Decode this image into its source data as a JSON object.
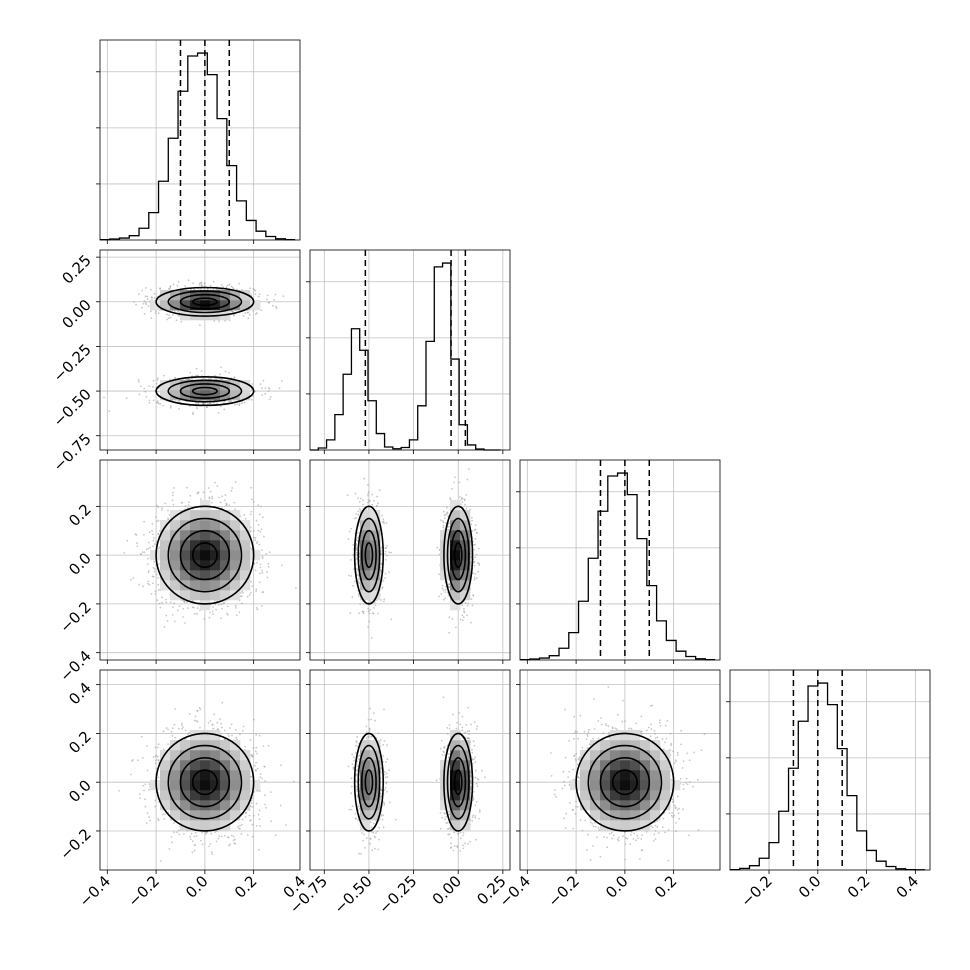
{
  "chart_data": {
    "type": "corner",
    "variables": 4,
    "quantile_lines": [
      -1,
      0,
      1
    ],
    "colors": {
      "line": "#000000",
      "grid": "#c0c0c0",
      "points": "#9a9a9a",
      "density_dark": "#000000",
      "density_light": "#ffffff"
    },
    "grid": true,
    "axes": [
      {
        "range": [
          -0.43,
          0.39
        ],
        "ticks": [
          "−0.4",
          "−0.2",
          "0.0",
          "0.2",
          "0.4"
        ],
        "tick_values": [
          -0.4,
          -0.2,
          0.0,
          0.2,
          0.4
        ]
      },
      {
        "range": [
          -0.83,
          0.29
        ],
        "ticks": [
          "−0.75",
          "−0.50",
          "−0.25",
          "0.00",
          "0.25"
        ],
        "tick_values": [
          -0.75,
          -0.5,
          -0.25,
          0.0,
          0.25
        ]
      },
      {
        "range": [
          -0.43,
          0.39
        ],
        "ticks": [
          "−0.4",
          "−0.2",
          "0.0",
          "0.2"
        ],
        "tick_values": [
          -0.4,
          -0.2,
          0.0,
          0.2
        ]
      },
      {
        "range": [
          -0.36,
          0.46
        ],
        "ticks": [
          "−0.2",
          "0.0",
          "0.2",
          "0.4"
        ],
        "tick_values": [
          -0.2,
          0.0,
          0.2,
          0.4
        ]
      }
    ],
    "bottom_ticks": [
      {
        "values": [
          -0.4,
          -0.2,
          0.0,
          0.2,
          0.4
        ],
        "labels": [
          "−0.4",
          "−0.2",
          "0.0",
          "0.2",
          "0.4"
        ]
      },
      {
        "values": [
          -0.75,
          -0.5,
          -0.25,
          0.0,
          0.25
        ],
        "labels": [
          "−0.75",
          "−0.50",
          "−0.25",
          "0.00",
          "0.25"
        ]
      },
      {
        "values": [
          -0.4,
          -0.2,
          0.0,
          0.2
        ],
        "labels": [
          "−0.4",
          "−0.2",
          "0.0",
          "0.2"
        ]
      },
      {
        "values": [
          -0.2,
          0.0,
          0.2,
          0.4
        ],
        "labels": [
          "−0.2",
          "0.0",
          "0.2",
          "0.4"
        ]
      }
    ],
    "left_ticks": [
      null,
      {
        "values": [
          -0.75,
          -0.5,
          -0.25,
          0.0,
          0.25
        ],
        "labels": [
          "−0.75",
          "−0.50",
          "−0.25",
          "0.00",
          "0.25"
        ]
      },
      {
        "values": [
          -0.4,
          -0.2,
          0.0,
          0.2
        ],
        "labels": [
          "−0.4",
          "−0.2",
          "0.0",
          "0.2"
        ]
      },
      {
        "values": [
          -0.2,
          0.0,
          0.2,
          0.4
        ],
        "labels": [
          "−0.2",
          "0.0",
          "0.2",
          "0.4"
        ]
      }
    ],
    "histograms": [
      {
        "quantiles": [
          -0.1,
          0.0,
          0.1
        ],
        "bin_edges": [
          -0.43,
          -0.39,
          -0.35,
          -0.31,
          -0.27,
          -0.23,
          -0.19,
          -0.15,
          -0.11,
          -0.07,
          -0.03,
          0.01,
          0.05,
          0.09,
          0.13,
          0.17,
          0.21,
          0.25,
          0.29,
          0.33,
          0.37
        ],
        "counts": [
          2,
          5,
          10,
          22,
          60,
          140,
          300,
          520,
          760,
          940,
          955,
          845,
          620,
          380,
          200,
          100,
          45,
          18,
          6,
          2
        ]
      },
      {
        "quantiles": [
          -0.52,
          -0.04,
          0.04
        ],
        "bin_edges": [
          -0.83,
          -0.7836,
          -0.7372,
          -0.6908,
          -0.6444,
          -0.598,
          -0.5516,
          -0.5052,
          -0.4588,
          -0.4124,
          -0.366,
          -0.3196,
          -0.2732,
          -0.2268,
          -0.1804,
          -0.134,
          -0.0876,
          -0.0412,
          0.0052,
          0.0516,
          0.098,
          0.1444,
          0.1908,
          0.2372
        ],
        "counts": [
          0,
          8,
          40,
          140,
          300,
          480,
          395,
          195,
          65,
          12,
          5,
          10,
          40,
          175,
          430,
          725,
          740,
          360,
          100,
          20,
          4,
          0,
          0
        ]
      },
      {
        "quantiles": [
          -0.1,
          0.0,
          0.1
        ],
        "bin_edges": [
          -0.43,
          -0.39,
          -0.35,
          -0.31,
          -0.27,
          -0.23,
          -0.19,
          -0.15,
          -0.11,
          -0.07,
          -0.03,
          0.01,
          0.05,
          0.09,
          0.13,
          0.17,
          0.21,
          0.25,
          0.29,
          0.33,
          0.37
        ],
        "counts": [
          2,
          5,
          10,
          22,
          60,
          140,
          300,
          520,
          760,
          940,
          955,
          845,
          620,
          380,
          200,
          100,
          45,
          18,
          6,
          2
        ]
      },
      {
        "quantiles": [
          -0.1,
          0.0,
          0.1
        ],
        "bin_edges": [
          -0.36,
          -0.32,
          -0.28,
          -0.24,
          -0.2,
          -0.16,
          -0.12,
          -0.08,
          -0.04,
          0.0,
          0.04,
          0.08,
          0.12,
          0.16,
          0.2,
          0.24,
          0.28,
          0.32,
          0.36,
          0.4,
          0.44
        ],
        "counts": [
          2,
          8,
          22,
          60,
          140,
          300,
          520,
          760,
          940,
          955,
          845,
          620,
          380,
          200,
          100,
          45,
          18,
          6,
          2,
          1
        ]
      }
    ],
    "pairs": [
      {
        "row": 1,
        "col": 0,
        "clusters": [
          {
            "mx": 0.0,
            "my": 0.0,
            "sx": 0.1,
            "sy": 0.04,
            "n": 900
          },
          {
            "mx": 0.0,
            "my": -0.5,
            "sx": 0.1,
            "sy": 0.04,
            "n": 600
          }
        ]
      },
      {
        "row": 2,
        "col": 0,
        "clusters": [
          {
            "mx": 0.0,
            "my": 0.0,
            "sx": 0.1,
            "sy": 0.1,
            "n": 1400
          }
        ]
      },
      {
        "row": 2,
        "col": 1,
        "clusters": [
          {
            "mx": -0.5,
            "my": 0.0,
            "sx": 0.04,
            "sy": 0.1,
            "n": 600
          },
          {
            "mx": 0.0,
            "my": 0.0,
            "sx": 0.04,
            "sy": 0.1,
            "n": 900
          }
        ]
      },
      {
        "row": 3,
        "col": 0,
        "clusters": [
          {
            "mx": 0.0,
            "my": 0.0,
            "sx": 0.1,
            "sy": 0.1,
            "n": 1400
          }
        ]
      },
      {
        "row": 3,
        "col": 1,
        "clusters": [
          {
            "mx": -0.5,
            "my": 0.0,
            "sx": 0.04,
            "sy": 0.1,
            "n": 600
          },
          {
            "mx": 0.0,
            "my": 0.0,
            "sx": 0.04,
            "sy": 0.1,
            "n": 900
          }
        ]
      },
      {
        "row": 3,
        "col": 2,
        "clusters": [
          {
            "mx": 0.0,
            "my": 0.0,
            "sx": 0.1,
            "sy": 0.1,
            "n": 1400
          }
        ]
      }
    ]
  }
}
